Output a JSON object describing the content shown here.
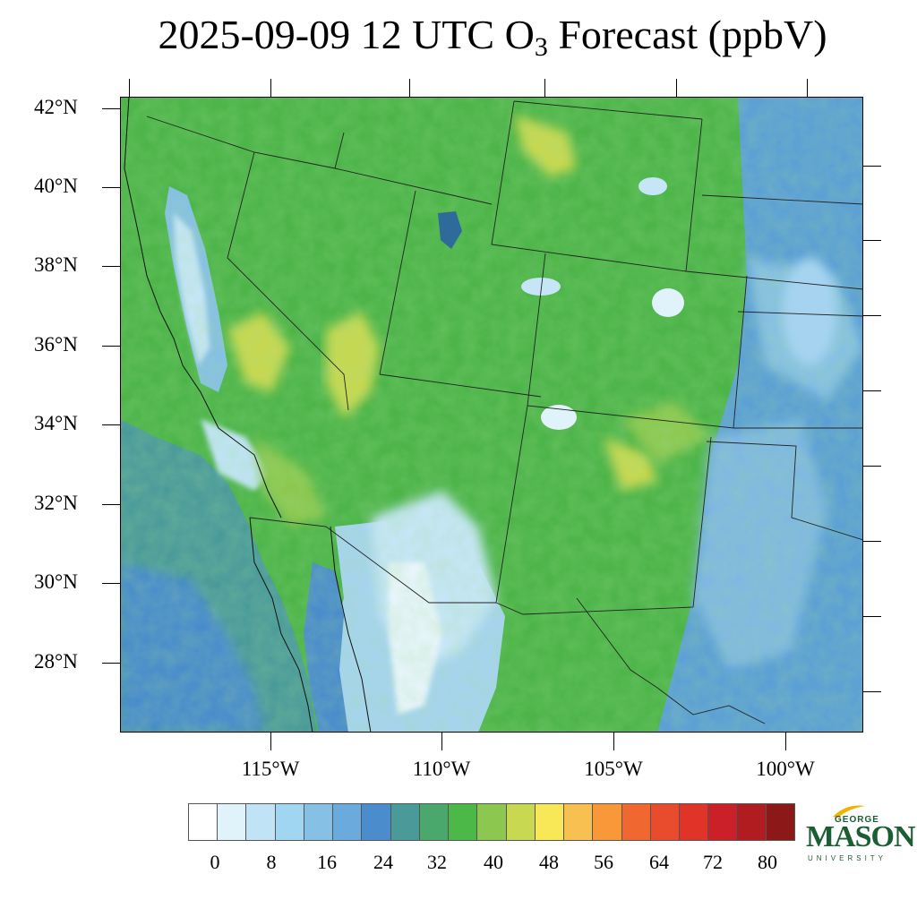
{
  "title": {
    "prefix": "2025-09-09 12 UTC O",
    "subscript": "3",
    "suffix": " Forecast (ppbV)"
  },
  "map": {
    "latitude_labels": [
      "42°N",
      "40°N",
      "38°N",
      "36°N",
      "34°N",
      "32°N",
      "30°N",
      "28°N"
    ],
    "longitude_labels": [
      "115°W",
      "110°W",
      "105°W",
      "100°W"
    ],
    "field": "Surface ozone (ppbV)",
    "dominant_ranges": {
      "pacific_ocean": "24-32",
      "great_basin": "32-44",
      "southern_arizona_sonora": "4-20",
      "great_plains": "16-28",
      "colorado_plateau": "32-44",
      "gulf_of_california": "20-28"
    }
  },
  "colorbar": {
    "labels": [
      "0",
      "8",
      "16",
      "24",
      "32",
      "40",
      "48",
      "56",
      "64",
      "72",
      "80"
    ],
    "colors": [
      "#ffffff",
      "#e0f2fa",
      "#c0e4f6",
      "#a0d6f2",
      "#86c0e4",
      "#6aaadc",
      "#4a8ccc",
      "#4a9a9a",
      "#4aa86c",
      "#4cb848",
      "#8cc850",
      "#c8d850",
      "#f8e858",
      "#f8c050",
      "#f89838",
      "#f06830",
      "#e84c2c",
      "#e03428",
      "#cc2028",
      "#b01c20",
      "#8c1818"
    ]
  },
  "logo": {
    "george": "GEORGE",
    "mason": "MASON",
    "university": "UNIVERSITY",
    "color": "#1a5f32",
    "accent": "#f0b400"
  }
}
